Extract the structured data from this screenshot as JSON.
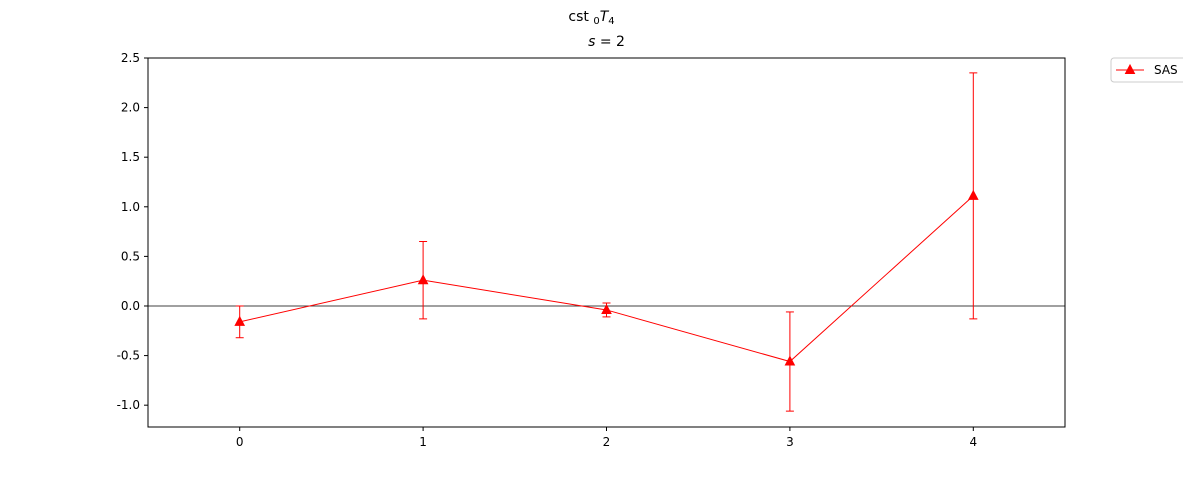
{
  "figure": {
    "suptitle_prefix": "cst ",
    "suptitle_sub": "0",
    "suptitle_var": "T",
    "suptitle_subscript": "4",
    "subtitle_var": "s",
    "subtitle_rest": " = 2"
  },
  "chart_data": {
    "type": "line",
    "title": "cst 0T4",
    "subtitle": "s = 2",
    "xlabel": "",
    "ylabel": "",
    "xlim": [
      -0.5,
      4.5
    ],
    "ylim": [
      -1.22,
      2.5
    ],
    "xticks": [
      0,
      1,
      2,
      3,
      4
    ],
    "xtick_labels": [
      "0",
      "1",
      "2",
      "3",
      "4"
    ],
    "yticks": [
      -1.0,
      -0.5,
      0.0,
      0.5,
      1.0,
      1.5,
      2.0,
      2.5
    ],
    "ytick_labels": [
      "-1.0",
      "-0.5",
      "0.0",
      "0.5",
      "1.0",
      "1.5",
      "2.0",
      "2.5"
    ],
    "reference_line_y": 0.0,
    "grid": false,
    "legend_position": "upper-right-outside",
    "series": [
      {
        "name": "SAS",
        "color": "#ff0000",
        "marker": "triangle-up",
        "x": [
          0,
          1,
          2,
          3,
          4
        ],
        "y": [
          -0.16,
          0.26,
          -0.04,
          -0.56,
          1.11
        ],
        "err_low": [
          -0.32,
          -0.13,
          -0.11,
          -1.06,
          -0.13
        ],
        "err_high": [
          0.0,
          0.65,
          0.03,
          -0.06,
          2.35
        ]
      }
    ]
  }
}
